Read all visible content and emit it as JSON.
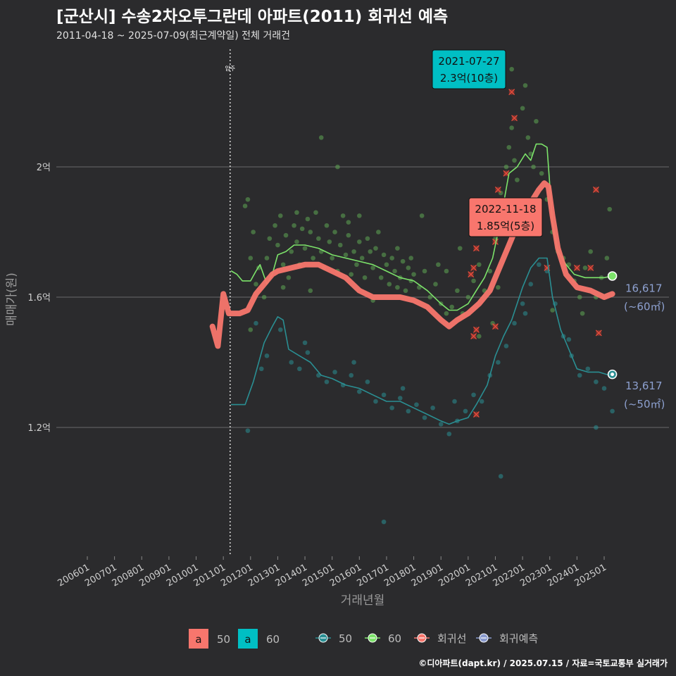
{
  "header": {
    "title": "[군산시] 수송2차오투그란데 아파트(2011) 회귀선 예측",
    "subtitle": "2011-04-18 ~ 2025-07-09(최근계약일) 전체 거래건"
  },
  "footer": {
    "credit": "©디아파트(dapt.kr) / 2025.07.15 / 자료=국토교통부 실거래가"
  },
  "chart_data": {
    "type": "scatter",
    "xlabel": "거래년월",
    "ylabel": "매매가(원)",
    "x_ticks": [
      "200601",
      "200701",
      "200801",
      "200901",
      "201001",
      "201101",
      "201201",
      "201301",
      "201401",
      "201501",
      "201601",
      "201701",
      "201801",
      "201901",
      "202001",
      "202101",
      "202201",
      "202301",
      "202401",
      "202501"
    ],
    "y_ticks": [
      {
        "value": 1.2,
        "label": "1.2억"
      },
      {
        "value": 1.6,
        "label": "1.6억"
      },
      {
        "value": 2.0,
        "label": "2억"
      }
    ],
    "ylim": [
      0.8,
      2.35
    ],
    "xlim": [
      2005.0,
      2025.99
    ],
    "grid": true,
    "move_in": {
      "x": 2011.25,
      "label": "입주"
    },
    "colors": {
      "s50": "#00BFC4",
      "s60": "#7CE36A",
      "regression": "#F8766D",
      "forecast": "#8899CC",
      "point50": "#2a8f93",
      "point60": "#5ea853"
    },
    "legend": {
      "fill_title": "",
      "fill_items": [
        {
          "key": "a",
          "label": "50",
          "color": "#F8766D"
        },
        {
          "key": "a",
          "label": "60",
          "color": "#00BFC4"
        }
      ],
      "line_items": [
        {
          "label": "50",
          "color": "#2a8f93"
        },
        {
          "label": "60",
          "color": "#7CE36A"
        },
        {
          "label": "회귀선",
          "color": "#F8766D"
        },
        {
          "label": "회귀예측",
          "color": "#8899CC"
        }
      ]
    },
    "annotations": [
      {
        "date": "2021-07-27",
        "text": "2.3억(10층)",
        "x": 2021.57,
        "y": 2.3,
        "style": "teal"
      },
      {
        "date": "2022-11-18",
        "text": "1.85억(5층)",
        "x": 2022.88,
        "y": 1.85,
        "style": "red"
      }
    ],
    "end_labels": [
      {
        "value": "16,617",
        "unit": "(~60㎡)",
        "y": 1.66
      },
      {
        "value": "13,617",
        "unit": "(~50㎡)",
        "y": 1.36
      }
    ],
    "series": [
      {
        "name": "60",
        "color": "#7CE36A",
        "points": [
          [
            2011.3,
            1.68
          ],
          [
            2011.5,
            1.67
          ],
          [
            2011.7,
            1.65
          ],
          [
            2012.0,
            1.65
          ],
          [
            2012.2,
            1.68
          ],
          [
            2012.35,
            1.7
          ],
          [
            2012.6,
            1.64
          ],
          [
            2012.8,
            1.67
          ],
          [
            2013.0,
            1.73
          ],
          [
            2013.3,
            1.74
          ],
          [
            2013.6,
            1.76
          ],
          [
            2014.0,
            1.76
          ],
          [
            2014.5,
            1.75
          ],
          [
            2015.0,
            1.73
          ],
          [
            2015.5,
            1.72
          ],
          [
            2016.0,
            1.71
          ],
          [
            2016.5,
            1.7
          ],
          [
            2017.0,
            1.68
          ],
          [
            2017.5,
            1.66
          ],
          [
            2018.0,
            1.65
          ],
          [
            2018.5,
            1.62
          ],
          [
            2019.0,
            1.58
          ],
          [
            2019.3,
            1.56
          ],
          [
            2019.6,
            1.56
          ],
          [
            2020.0,
            1.58
          ],
          [
            2020.3,
            1.62
          ],
          [
            2020.6,
            1.66
          ],
          [
            2020.9,
            1.72
          ],
          [
            2021.2,
            1.84
          ],
          [
            2021.5,
            1.98
          ],
          [
            2021.8,
            2.0
          ],
          [
            2022.1,
            2.04
          ],
          [
            2022.3,
            2.02
          ],
          [
            2022.5,
            2.07
          ],
          [
            2022.7,
            2.07
          ],
          [
            2022.9,
            2.06
          ],
          [
            2023.1,
            1.83
          ],
          [
            2023.3,
            1.74
          ],
          [
            2023.6,
            1.7
          ],
          [
            2023.9,
            1.67
          ],
          [
            2024.3,
            1.66
          ],
          [
            2024.7,
            1.66
          ],
          [
            2025.0,
            1.66
          ],
          [
            2025.3,
            1.665
          ]
        ]
      },
      {
        "name": "50",
        "color": "#2a8f93",
        "points": [
          [
            2011.3,
            1.27
          ],
          [
            2011.8,
            1.27
          ],
          [
            2012.1,
            1.34
          ],
          [
            2012.5,
            1.46
          ],
          [
            2012.8,
            1.51
          ],
          [
            2013.0,
            1.54
          ],
          [
            2013.2,
            1.53
          ],
          [
            2013.4,
            1.44
          ],
          [
            2013.8,
            1.42
          ],
          [
            2014.2,
            1.4
          ],
          [
            2014.6,
            1.36
          ],
          [
            2015.0,
            1.35
          ],
          [
            2015.5,
            1.33
          ],
          [
            2016.0,
            1.32
          ],
          [
            2016.5,
            1.3
          ],
          [
            2017.0,
            1.28
          ],
          [
            2017.5,
            1.28
          ],
          [
            2018.0,
            1.26
          ],
          [
            2018.5,
            1.24
          ],
          [
            2019.0,
            1.22
          ],
          [
            2019.3,
            1.21
          ],
          [
            2019.6,
            1.22
          ],
          [
            2020.0,
            1.23
          ],
          [
            2020.3,
            1.27
          ],
          [
            2020.7,
            1.33
          ],
          [
            2021.0,
            1.42
          ],
          [
            2021.3,
            1.48
          ],
          [
            2021.6,
            1.53
          ],
          [
            2022.0,
            1.63
          ],
          [
            2022.3,
            1.69
          ],
          [
            2022.6,
            1.72
          ],
          [
            2022.9,
            1.72
          ],
          [
            2023.1,
            1.6
          ],
          [
            2023.4,
            1.5
          ],
          [
            2023.7,
            1.44
          ],
          [
            2024.0,
            1.38
          ],
          [
            2024.4,
            1.37
          ],
          [
            2024.8,
            1.37
          ],
          [
            2025.2,
            1.36
          ],
          [
            2025.3,
            1.363
          ]
        ]
      },
      {
        "name": "회귀선",
        "color": "#F8766D",
        "points": [
          [
            2010.6,
            1.51
          ],
          [
            2010.8,
            1.45
          ],
          [
            2011.0,
            1.61
          ],
          [
            2011.2,
            1.55
          ],
          [
            2011.6,
            1.55
          ],
          [
            2011.9,
            1.56
          ],
          [
            2012.2,
            1.61
          ],
          [
            2012.5,
            1.64
          ],
          [
            2012.8,
            1.67
          ],
          [
            2013.0,
            1.68
          ],
          [
            2013.5,
            1.69
          ],
          [
            2014.0,
            1.7
          ],
          [
            2014.5,
            1.7
          ],
          [
            2015.0,
            1.68
          ],
          [
            2015.5,
            1.66
          ],
          [
            2016.0,
            1.62
          ],
          [
            2016.5,
            1.6
          ],
          [
            2017.0,
            1.6
          ],
          [
            2017.5,
            1.6
          ],
          [
            2018.0,
            1.59
          ],
          [
            2018.5,
            1.57
          ],
          [
            2019.0,
            1.53
          ],
          [
            2019.3,
            1.51
          ],
          [
            2019.6,
            1.53
          ],
          [
            2020.0,
            1.55
          ],
          [
            2020.4,
            1.58
          ],
          [
            2020.8,
            1.62
          ],
          [
            2021.2,
            1.7
          ],
          [
            2021.6,
            1.78
          ],
          [
            2022.0,
            1.86
          ],
          [
            2022.3,
            1.89
          ],
          [
            2022.6,
            1.93
          ],
          [
            2022.8,
            1.95
          ],
          [
            2022.95,
            1.94
          ],
          [
            2023.1,
            1.85
          ],
          [
            2023.3,
            1.75
          ],
          [
            2023.6,
            1.67
          ],
          [
            2024.0,
            1.63
          ],
          [
            2024.5,
            1.62
          ],
          [
            2025.0,
            1.6
          ],
          [
            2025.3,
            1.61
          ]
        ]
      }
    ],
    "scatter_60": [
      [
        2011.8,
        1.88
      ],
      [
        2011.9,
        1.9
      ],
      [
        2012.0,
        1.72
      ],
      [
        2012.1,
        1.8
      ],
      [
        2012.2,
        1.64
      ],
      [
        2012.3,
        1.69
      ],
      [
        2012.6,
        1.72
      ],
      [
        2012.7,
        1.78
      ],
      [
        2012.9,
        1.82
      ],
      [
        2013.0,
        1.76
      ],
      [
        2013.1,
        1.85
      ],
      [
        2013.2,
        1.7
      ],
      [
        2013.3,
        1.79
      ],
      [
        2013.4,
        1.66
      ],
      [
        2013.5,
        1.74
      ],
      [
        2013.6,
        1.82
      ],
      [
        2013.7,
        1.77
      ],
      [
        2013.8,
        1.7
      ],
      [
        2013.9,
        1.81
      ],
      [
        2014.0,
        1.75
      ],
      [
        2014.1,
        1.84
      ],
      [
        2014.2,
        1.8
      ],
      [
        2014.3,
        1.72
      ],
      [
        2014.4,
        1.86
      ],
      [
        2014.5,
        1.78
      ],
      [
        2014.6,
        1.74
      ],
      [
        2014.7,
        1.69
      ],
      [
        2014.8,
        1.82
      ],
      [
        2014.9,
        1.77
      ],
      [
        2015.0,
        1.72
      ],
      [
        2015.1,
        1.8
      ],
      [
        2015.2,
        1.68
      ],
      [
        2015.3,
        1.76
      ],
      [
        2015.4,
        1.85
      ],
      [
        2015.5,
        1.73
      ],
      [
        2015.6,
        1.79
      ],
      [
        2015.7,
        1.67
      ],
      [
        2015.8,
        1.74
      ],
      [
        2015.9,
        1.7
      ],
      [
        2016.0,
        1.77
      ],
      [
        2016.1,
        1.72
      ],
      [
        2016.2,
        1.66
      ],
      [
        2016.3,
        1.78
      ],
      [
        2016.4,
        1.74
      ],
      [
        2016.5,
        1.69
      ],
      [
        2016.6,
        1.75
      ],
      [
        2016.7,
        1.8
      ],
      [
        2016.8,
        1.66
      ],
      [
        2016.9,
        1.73
      ],
      [
        2017.0,
        1.7
      ],
      [
        2017.1,
        1.64
      ],
      [
        2017.2,
        1.72
      ],
      [
        2017.3,
        1.68
      ],
      [
        2017.4,
        1.75
      ],
      [
        2017.5,
        1.66
      ],
      [
        2017.6,
        1.71
      ],
      [
        2017.7,
        1.62
      ],
      [
        2017.8,
        1.69
      ],
      [
        2017.9,
        1.65
      ],
      [
        2018.0,
        1.67
      ],
      [
        2018.2,
        1.63
      ],
      [
        2018.4,
        1.68
      ],
      [
        2018.6,
        1.6
      ],
      [
        2018.8,
        1.64
      ],
      [
        2019.0,
        1.58
      ],
      [
        2019.2,
        1.55
      ],
      [
        2019.4,
        1.57
      ],
      [
        2019.6,
        1.62
      ],
      [
        2019.8,
        1.55
      ],
      [
        2020.0,
        1.6
      ],
      [
        2020.2,
        1.65
      ],
      [
        2020.4,
        1.7
      ],
      [
        2020.6,
        1.62
      ],
      [
        2020.8,
        1.68
      ],
      [
        2021.0,
        1.78
      ],
      [
        2021.2,
        1.92
      ],
      [
        2021.4,
        2.0
      ],
      [
        2021.5,
        2.06
      ],
      [
        2021.6,
        2.12
      ],
      [
        2021.7,
        2.02
      ],
      [
        2021.8,
        1.96
      ],
      [
        2022.0,
        2.18
      ],
      [
        2022.1,
        2.25
      ],
      [
        2022.2,
        2.09
      ],
      [
        2022.3,
        2.04
      ],
      [
        2022.4,
        2.0
      ],
      [
        2022.5,
        2.14
      ],
      [
        2022.7,
        1.98
      ],
      [
        2022.9,
        1.9
      ],
      [
        2023.1,
        1.8
      ],
      [
        2023.3,
        1.74
      ],
      [
        2023.5,
        1.72
      ],
      [
        2023.7,
        1.7
      ],
      [
        2023.9,
        1.65
      ],
      [
        2024.1,
        1.6
      ],
      [
        2024.3,
        1.69
      ],
      [
        2024.5,
        1.74
      ],
      [
        2024.7,
        1.6
      ],
      [
        2024.9,
        1.66
      ],
      [
        2025.1,
        1.72
      ],
      [
        2025.2,
        1.87
      ],
      [
        2015.2,
        2.0
      ],
      [
        2014.6,
        2.09
      ],
      [
        2021.6,
        2.3
      ],
      [
        2013.2,
        1.63
      ],
      [
        2012.0,
        1.5
      ],
      [
        2014.2,
        1.62
      ],
      [
        2016.5,
        1.59
      ],
      [
        2017.9,
        1.72
      ],
      [
        2019.2,
        1.68
      ],
      [
        2020.4,
        1.48
      ],
      [
        2013.7,
        1.86
      ],
      [
        2015.6,
        1.83
      ],
      [
        2018.3,
        1.85
      ],
      [
        2019.7,
        1.75
      ],
      [
        2021.1,
        1.63
      ],
      [
        2023.1,
        1.56
      ],
      [
        2024.2,
        1.55
      ],
      [
        2012.5,
        1.6
      ],
      [
        2016.0,
        1.85
      ],
      [
        2017.4,
        1.63
      ],
      [
        2018.9,
        1.7
      ],
      [
        2020.9,
        1.52
      ],
      [
        2022.6,
        1.84
      ]
    ],
    "scatter_50": [
      [
        2011.9,
        1.19
      ],
      [
        2012.4,
        1.38
      ],
      [
        2012.6,
        1.42
      ],
      [
        2013.1,
        1.5
      ],
      [
        2013.5,
        1.4
      ],
      [
        2013.8,
        1.38
      ],
      [
        2014.1,
        1.43
      ],
      [
        2014.5,
        1.36
      ],
      [
        2014.8,
        1.34
      ],
      [
        2015.1,
        1.37
      ],
      [
        2015.4,
        1.33
      ],
      [
        2015.7,
        1.36
      ],
      [
        2016.0,
        1.31
      ],
      [
        2016.3,
        1.34
      ],
      [
        2016.6,
        1.28
      ],
      [
        2016.9,
        1.3
      ],
      [
        2017.2,
        1.26
      ],
      [
        2017.5,
        1.29
      ],
      [
        2017.8,
        1.25
      ],
      [
        2018.1,
        1.27
      ],
      [
        2018.4,
        1.23
      ],
      [
        2018.7,
        1.26
      ],
      [
        2019.0,
        1.21
      ],
      [
        2019.3,
        1.18
      ],
      [
        2019.6,
        1.22
      ],
      [
        2019.9,
        1.25
      ],
      [
        2020.2,
        1.3
      ],
      [
        2020.5,
        1.28
      ],
      [
        2020.8,
        1.36
      ],
      [
        2021.1,
        1.4
      ],
      [
        2021.4,
        1.45
      ],
      [
        2021.7,
        1.52
      ],
      [
        2022.0,
        1.58
      ],
      [
        2022.3,
        1.64
      ],
      [
        2022.6,
        1.7
      ],
      [
        2022.9,
        1.68
      ],
      [
        2023.2,
        1.58
      ],
      [
        2023.5,
        1.48
      ],
      [
        2023.8,
        1.42
      ],
      [
        2024.1,
        1.36
      ],
      [
        2024.4,
        1.38
      ],
      [
        2024.7,
        1.34
      ],
      [
        2025.0,
        1.32
      ],
      [
        2025.3,
        1.25
      ],
      [
        2016.9,
        0.91
      ],
      [
        2021.2,
        1.05
      ],
      [
        2012.2,
        1.52
      ],
      [
        2014.0,
        1.46
      ],
      [
        2015.8,
        1.4
      ],
      [
        2017.6,
        1.32
      ],
      [
        2019.5,
        1.28
      ],
      [
        2022.1,
        1.55
      ],
      [
        2023.7,
        1.47
      ],
      [
        2024.7,
        1.2
      ]
    ],
    "markers_x": [
      [
        2021.6,
        2.23
      ],
      [
        2021.7,
        2.15
      ],
      [
        2021.4,
        1.98
      ],
      [
        2021.1,
        1.93
      ],
      [
        2020.3,
        1.75
      ],
      [
        2020.2,
        1.69
      ],
      [
        2020.1,
        1.67
      ],
      [
        2020.3,
        1.5
      ],
      [
        2020.2,
        1.48
      ],
      [
        2021.0,
        1.51
      ],
      [
        2020.3,
        1.24
      ],
      [
        2024.7,
        1.93
      ],
      [
        2024.5,
        1.69
      ],
      [
        2024.0,
        1.69
      ],
      [
        2024.8,
        1.49
      ],
      [
        2022.9,
        1.69
      ],
      [
        2021.0,
        1.77
      ]
    ]
  }
}
